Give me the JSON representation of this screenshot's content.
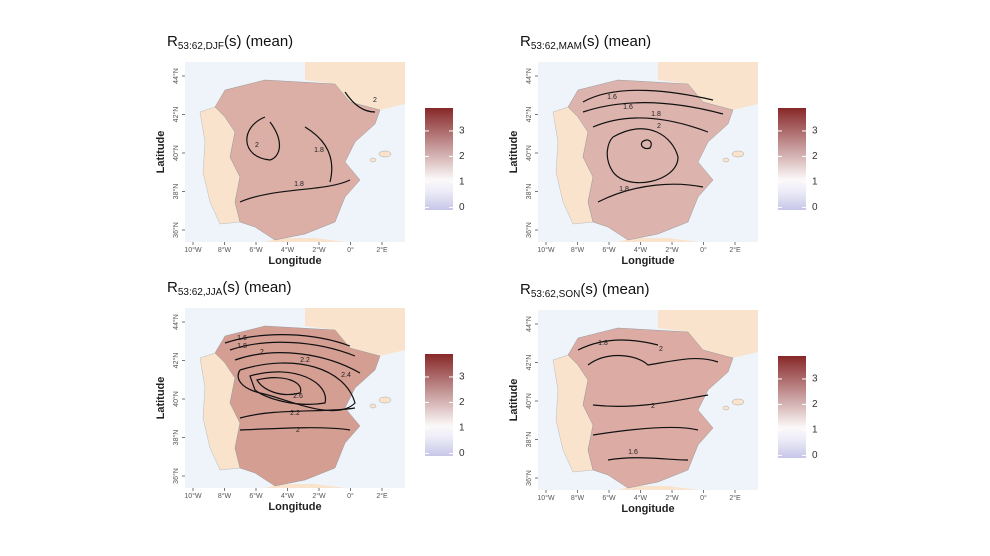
{
  "panels": [
    {
      "title": {
        "symbol": "R",
        "subscript": "53:62,DJF",
        "suffix": "(s) (mean)"
      },
      "contour_labels": [
        "2",
        "2",
        "1.8",
        "1.8"
      ]
    },
    {
      "title": {
        "symbol": "R",
        "subscript": "53:62,MAM",
        "suffix": "(s) (mean)"
      },
      "contour_labels": [
        "1.6",
        "1.6",
        "1.8",
        "2",
        "1.8"
      ]
    },
    {
      "title": {
        "symbol": "R",
        "subscript": "53:62,JJA",
        "suffix": "(s) (mean)"
      },
      "contour_labels": [
        "1.6",
        "1.8",
        "2",
        "2.2",
        "2.4",
        "2.6",
        "2.2",
        "2"
      ]
    },
    {
      "title": {
        "symbol": "R",
        "subscript": "53:62,SON",
        "suffix": "(s) (mean)"
      },
      "contour_labels": [
        "1.8",
        "2",
        "2",
        "1.6"
      ]
    }
  ],
  "x_axis_label": "Longitude",
  "y_axis_label": "Latitude",
  "lon_ticks": [
    "10°W",
    "8°W",
    "6°W",
    "4°W",
    "2°W",
    "0°",
    "2°E"
  ],
  "lat_ticks": [
    "36°N",
    "38°N",
    "40°N",
    "42°N",
    "44°N"
  ],
  "colorbar": {
    "lim": [
      -0.1,
      3.9
    ],
    "ticks": [
      0,
      1,
      2,
      3
    ]
  }
}
